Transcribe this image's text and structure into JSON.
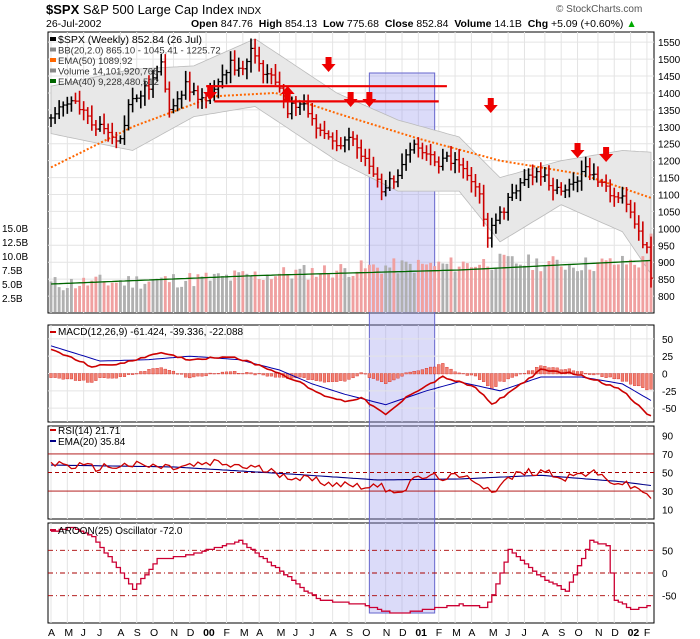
{
  "header": {
    "symbol": "$SPX",
    "name": "S&P 500 Large Cap Index",
    "exchange": "INDX",
    "date": "26-Jul-2002",
    "open_label": "Open",
    "open": "847.76",
    "high_label": "High",
    "high": "854.13",
    "low_label": "Low",
    "low": "775.68",
    "close_label": "Close",
    "close": "852.84",
    "volume_label": "Volume",
    "volume": "14.1B",
    "chg_label": "Chg",
    "chg": "+5.09 (+0.60%)",
    "credit": "© StockCharts.com"
  },
  "colors": {
    "price_up": "#000000",
    "price_down": "#cc0000",
    "ema50": "#ff6600",
    "ema40": "#006600",
    "bb_fill": "#e8e8e8",
    "volume_up": "#b0b0b0",
    "volume_down": "#f0a0a0",
    "highlight": "#9999ee",
    "arrow": "#ee0000",
    "macd": "#cc0000",
    "signal": "#0000aa",
    "rsi": "#cc0000",
    "rsi_ema": "#000088",
    "aroon": "#cc0033"
  },
  "chart_data": [
    {
      "type": "line",
      "panel": "price",
      "legend": [
        {
          "label": "$SPX (Weekly) 852.84 (26 Jul)"
        },
        {
          "label": "BB(20,2.0) 865.10 - 1045.41 - 1225.72"
        },
        {
          "label": "EMA(50) 1089.92"
        },
        {
          "label": "Volume 14,101,920,768"
        },
        {
          "label": "EMA(40) 9,228,480,512"
        }
      ],
      "ylim": [
        750,
        1580
      ],
      "y_ticks": [
        "1550",
        "1500",
        "1450",
        "1400",
        "1350",
        "1300",
        "1250",
        "1200",
        "1150",
        "1100",
        "1050",
        "1000",
        "950",
        "900",
        "850",
        "800"
      ],
      "volume_ticks": [
        "15.0B",
        "12.5B",
        "10.0B",
        "7.5B",
        "5.0B",
        "2.5B"
      ],
      "volume_ylim": [
        0,
        15
      ],
      "price_anchors": [
        [
          0,
          1335
        ],
        [
          6,
          1375
        ],
        [
          10,
          1310
        ],
        [
          14,
          1290
        ],
        [
          17,
          1260
        ],
        [
          19,
          1365
        ],
        [
          24,
          1420
        ],
        [
          27,
          1480
        ],
        [
          29,
          1360
        ],
        [
          33,
          1420
        ],
        [
          35,
          1400
        ],
        [
          38,
          1375
        ],
        [
          41,
          1420
        ],
        [
          44,
          1500
        ],
        [
          46,
          1460
        ],
        [
          49,
          1520
        ],
        [
          52,
          1460
        ],
        [
          56,
          1420
        ],
        [
          58,
          1350
        ],
        [
          62,
          1380
        ],
        [
          64,
          1320
        ],
        [
          67,
          1280
        ],
        [
          71,
          1240
        ],
        [
          73,
          1270
        ],
        [
          78,
          1180
        ],
        [
          81,
          1120
        ],
        [
          84,
          1140
        ],
        [
          87,
          1230
        ],
        [
          89,
          1250
        ],
        [
          92,
          1220
        ],
        [
          95,
          1180
        ],
        [
          97,
          1210
        ],
        [
          102,
          1160
        ],
        [
          105,
          1100
        ],
        [
          107,
          980
        ],
        [
          109,
          1010
        ],
        [
          113,
          1110
        ],
        [
          116,
          1140
        ],
        [
          119,
          1170
        ],
        [
          122,
          1140
        ],
        [
          125,
          1100
        ],
        [
          128,
          1140
        ],
        [
          131,
          1170
        ],
        [
          134,
          1150
        ],
        [
          137,
          1110
        ],
        [
          140,
          1100
        ],
        [
          142,
          1050
        ],
        [
          144,
          980
        ],
        [
          146,
          940
        ],
        [
          147,
          853
        ]
      ],
      "ema50_anchors": [
        [
          0,
          1180
        ],
        [
          20,
          1300
        ],
        [
          40,
          1390
        ],
        [
          55,
          1400
        ],
        [
          70,
          1340
        ],
        [
          90,
          1265
        ],
        [
          110,
          1200
        ],
        [
          130,
          1160
        ],
        [
          147,
          1090
        ]
      ],
      "bb_upper_anchors": [
        [
          0,
          1420
        ],
        [
          20,
          1470
        ],
        [
          35,
          1480
        ],
        [
          50,
          1560
        ],
        [
          60,
          1480
        ],
        [
          70,
          1400
        ],
        [
          85,
          1320
        ],
        [
          100,
          1270
        ],
        [
          110,
          1150
        ],
        [
          125,
          1200
        ],
        [
          140,
          1230
        ],
        [
          147,
          1225
        ]
      ],
      "bb_lower_anchors": [
        [
          0,
          1280
        ],
        [
          20,
          1230
        ],
        [
          35,
          1330
        ],
        [
          50,
          1360
        ],
        [
          60,
          1280
        ],
        [
          70,
          1200
        ],
        [
          85,
          1110
        ],
        [
          100,
          1110
        ],
        [
          110,
          960
        ],
        [
          125,
          1070
        ],
        [
          140,
          990
        ],
        [
          147,
          865
        ]
      ],
      "volume_anchors": [
        [
          0,
          5
        ],
        [
          40,
          6
        ],
        [
          60,
          7
        ],
        [
          80,
          8
        ],
        [
          100,
          8.5
        ],
        [
          110,
          9
        ],
        [
          130,
          8.5
        ],
        [
          146,
          9
        ],
        [
          147,
          14
        ]
      ],
      "volume_ema_anchors": [
        [
          0,
          5
        ],
        [
          50,
          6.5
        ],
        [
          100,
          7.5
        ],
        [
          147,
          9.2
        ]
      ],
      "resistance_levels": [
        1420,
        1375
      ]
    },
    {
      "type": "line",
      "panel": "macd",
      "legend": [
        {
          "label": "MACD(12,26,9) -61.424, -39.336, -22.088"
        }
      ],
      "y_ticks": [
        "50",
        "25",
        "0",
        "-25",
        "-50"
      ],
      "ylim": [
        -70,
        70
      ],
      "macd_anchors": [
        [
          0,
          35
        ],
        [
          10,
          10
        ],
        [
          18,
          15
        ],
        [
          26,
          30
        ],
        [
          34,
          20
        ],
        [
          44,
          25
        ],
        [
          52,
          10
        ],
        [
          60,
          -10
        ],
        [
          66,
          -30
        ],
        [
          72,
          -40
        ],
        [
          76,
          -35
        ],
        [
          82,
          -60
        ],
        [
          88,
          -30
        ],
        [
          96,
          -5
        ],
        [
          104,
          -20
        ],
        [
          108,
          -45
        ],
        [
          114,
          -20
        ],
        [
          120,
          5
        ],
        [
          128,
          0
        ],
        [
          134,
          -10
        ],
        [
          140,
          -25
        ],
        [
          146,
          -58
        ],
        [
          147,
          -61
        ]
      ],
      "signal_anchors": [
        [
          0,
          40
        ],
        [
          12,
          18
        ],
        [
          24,
          20
        ],
        [
          34,
          25
        ],
        [
          46,
          20
        ],
        [
          56,
          5
        ],
        [
          64,
          -15
        ],
        [
          72,
          -30
        ],
        [
          82,
          -45
        ],
        [
          92,
          -25
        ],
        [
          100,
          -12
        ],
        [
          110,
          -25
        ],
        [
          120,
          -5
        ],
        [
          130,
          -5
        ],
        [
          140,
          -15
        ],
        [
          147,
          -39
        ]
      ]
    },
    {
      "type": "line",
      "panel": "rsi",
      "legend": [
        {
          "label": "RSI(14) 21.71"
        },
        {
          "label": "EMA(20) 35.84"
        }
      ],
      "y_ticks": [
        "90",
        "70",
        "50",
        "30",
        "10"
      ],
      "ylim": [
        0,
        100
      ],
      "levels": [
        70,
        50,
        30
      ],
      "rsi_anchors": [
        [
          0,
          60
        ],
        [
          10,
          55
        ],
        [
          20,
          58
        ],
        [
          30,
          55
        ],
        [
          40,
          60
        ],
        [
          50,
          55
        ],
        [
          60,
          45
        ],
        [
          70,
          38
        ],
        [
          80,
          35
        ],
        [
          86,
          30
        ],
        [
          90,
          45
        ],
        [
          98,
          45
        ],
        [
          104,
          42
        ],
        [
          108,
          30
        ],
        [
          114,
          48
        ],
        [
          120,
          52
        ],
        [
          126,
          45
        ],
        [
          132,
          50
        ],
        [
          138,
          40
        ],
        [
          142,
          35
        ],
        [
          146,
          28
        ],
        [
          147,
          22
        ]
      ],
      "rsi_ema_anchors": [
        [
          0,
          58
        ],
        [
          30,
          56
        ],
        [
          60,
          48
        ],
        [
          80,
          42
        ],
        [
          100,
          43
        ],
        [
          120,
          47
        ],
        [
          140,
          40
        ],
        [
          147,
          36
        ]
      ]
    },
    {
      "type": "line",
      "panel": "aroon",
      "legend": [
        {
          "label": "AROON(25) Oscillator -72.0"
        }
      ],
      "y_ticks": [
        "50",
        "0",
        "-50"
      ],
      "ylim": [
        -110,
        110
      ],
      "levels": [
        50,
        0,
        -50
      ],
      "aroon_anchors": [
        [
          0,
          90
        ],
        [
          5,
          100
        ],
        [
          10,
          80
        ],
        [
          20,
          -35
        ],
        [
          26,
          30
        ],
        [
          34,
          40
        ],
        [
          46,
          70
        ],
        [
          52,
          30
        ],
        [
          58,
          -10
        ],
        [
          62,
          -40
        ],
        [
          66,
          -60
        ],
        [
          72,
          -65
        ],
        [
          76,
          -70
        ],
        [
          84,
          -90
        ],
        [
          92,
          -80
        ],
        [
          100,
          -70
        ],
        [
          106,
          -75
        ],
        [
          108,
          -50
        ],
        [
          112,
          50
        ],
        [
          116,
          20
        ],
        [
          120,
          -10
        ],
        [
          126,
          -40
        ],
        [
          132,
          70
        ],
        [
          136,
          60
        ],
        [
          138,
          -60
        ],
        [
          142,
          -80
        ],
        [
          147,
          -72
        ]
      ]
    }
  ],
  "x_axis": {
    "months": [
      {
        "label": "A",
        "i": 0
      },
      {
        "label": "M",
        "i": 4
      },
      {
        "label": "J",
        "i": 8
      },
      {
        "label": "J",
        "i": 12
      },
      {
        "label": "A",
        "i": 17
      },
      {
        "label": "S",
        "i": 21
      },
      {
        "label": "O",
        "i": 25
      },
      {
        "label": "N",
        "i": 30
      },
      {
        "label": "D",
        "i": 34
      },
      {
        "label": "00",
        "i": 38,
        "bold": true
      },
      {
        "label": "F",
        "i": 43
      },
      {
        "label": "M",
        "i": 47
      },
      {
        "label": "A",
        "i": 51
      },
      {
        "label": "M",
        "i": 56
      },
      {
        "label": "J",
        "i": 60
      },
      {
        "label": "J",
        "i": 64
      },
      {
        "label": "A",
        "i": 69
      },
      {
        "label": "S",
        "i": 73
      },
      {
        "label": "O",
        "i": 77
      },
      {
        "label": "N",
        "i": 82
      },
      {
        "label": "D",
        "i": 86
      },
      {
        "label": "01",
        "i": 90,
        "bold": true
      },
      {
        "label": "F",
        "i": 95
      },
      {
        "label": "M",
        "i": 99
      },
      {
        "label": "A",
        "i": 103
      },
      {
        "label": "M",
        "i": 108
      },
      {
        "label": "J",
        "i": 112
      },
      {
        "label": "J",
        "i": 116
      },
      {
        "label": "A",
        "i": 121
      },
      {
        "label": "S",
        "i": 125
      },
      {
        "label": "O",
        "i": 129
      },
      {
        "label": "N",
        "i": 134
      },
      {
        "label": "D",
        "i": 138
      },
      {
        "label": "02",
        "i": 142,
        "bold": true
      },
      {
        "label": "F",
        "i": 146
      }
    ]
  }
}
